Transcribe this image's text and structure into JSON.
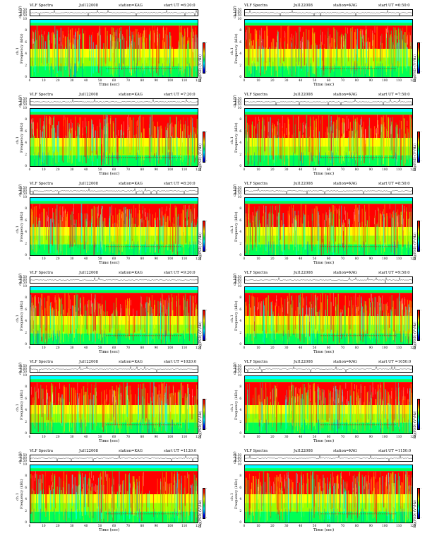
{
  "layout_note": "",
  "labels": {
    "ts_ylabel": "ch.1(V)",
    "sp_ylabel_1": "ch.1",
    "sp_ylabel_2": "Frequency (kHz)",
    "xlabel": "Time (sec)",
    "cbar_label": "log(PSD) (V²/Hz)"
  },
  "ts_ticks": [
    "0.50",
    "0.00",
    "-0.50"
  ],
  "freq_ticks": [
    "10",
    "8",
    "6",
    "4",
    "2",
    "0"
  ],
  "time_ticks": [
    "0",
    "10",
    "20",
    "30",
    "40",
    "50",
    "60",
    "70",
    "80",
    "90",
    "100",
    "110",
    "120"
  ],
  "cbar_ticks": [
    "-",
    "-"
  ],
  "colors": {
    "red": "#ff0000",
    "orange": "#ff9a00",
    "yellow": "#ffff00",
    "lime": "#9aff00",
    "green": "#00ff55",
    "cyan": "#00ffff",
    "blue": "#0040ff"
  },
  "panels": [
    {
      "title": "VLF Spectra",
      "date": "Jul122008",
      "station": "station=KAG",
      "start": "start  UT =6:20:0"
    },
    {
      "title": "VLF Spectra",
      "date": "Jul122008",
      "station": "station=KAG",
      "start": "start  UT =6:50:0"
    },
    {
      "title": "VLF Spectra",
      "date": "Jul122008",
      "station": "station=KAG",
      "start": "start  UT =7:20:0"
    },
    {
      "title": "VLF Spectra",
      "date": "Jul122008",
      "station": "station=KAG",
      "start": "start  UT =7:50:0"
    },
    {
      "title": "VLF Spectra",
      "date": "Jul122008",
      "station": "station=KAG",
      "start": "start  UT =8:20:0"
    },
    {
      "title": "VLF Spectra",
      "date": "Jul122008",
      "station": "station=KAG",
      "start": "start  UT =8:50:0"
    },
    {
      "title": "VLF Spectra",
      "date": "Jul122008",
      "station": "station=KAG",
      "start": "start  UT =9:20:0"
    },
    {
      "title": "VLF Spectra",
      "date": "Jul122008",
      "station": "station=KAG",
      "start": "start  UT =9:50:0"
    },
    {
      "title": "VLF Spectra",
      "date": "Jul122008",
      "station": "station=KAG",
      "start": "start  UT =1020:0"
    },
    {
      "title": "VLF Spectra",
      "date": "Jul122008",
      "station": "station=KAG",
      "start": "start  UT =1050:0"
    },
    {
      "title": "VLF Spectra",
      "date": "Jul122008",
      "station": "station=KAG",
      "start": "start  UT =1120:0"
    },
    {
      "title": "VLF Spectra",
      "date": "Jul122008",
      "station": "station=KAG",
      "start": "start  UT =1150:0"
    }
  ],
  "chart_data": {
    "type": "heatmap",
    "x_range": [
      0,
      120
    ],
    "y_range": [
      0,
      10
    ],
    "ts_range": [
      -0.5,
      0.5
    ],
    "bands": [
      {
        "from": 9.5,
        "to": 10.0,
        "color": "cyan"
      },
      {
        "from": 9.0,
        "to": 9.5,
        "color": "green"
      },
      {
        "from": 5.0,
        "to": 9.0,
        "color": "red"
      },
      {
        "from": 3.5,
        "to": 5.0,
        "color": "yellow"
      },
      {
        "from": 2.0,
        "to": 3.5,
        "color": "lime"
      },
      {
        "from": 0.0,
        "to": 2.0,
        "color": "green"
      }
    ]
  }
}
